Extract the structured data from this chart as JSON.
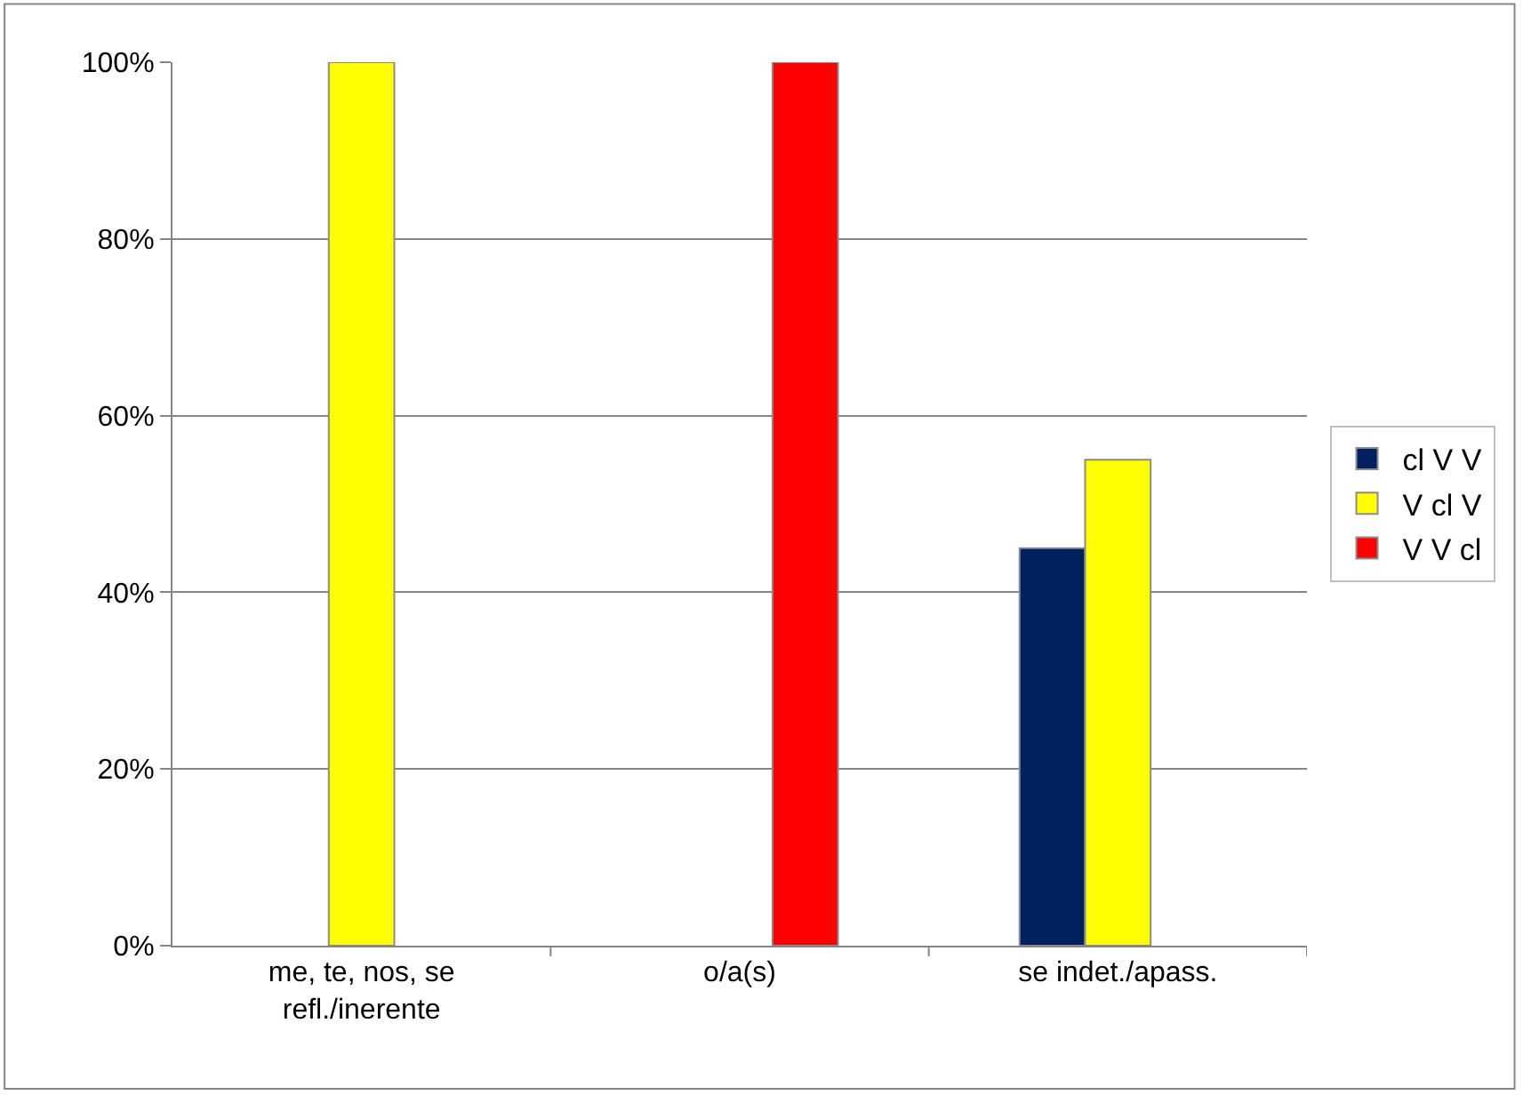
{
  "chart_data": {
    "type": "bar",
    "categories": [
      "me, te, nos, se\nrefl./inerente",
      "o/a(s)",
      "se indet./apass."
    ],
    "series": [
      {
        "name": "cl V V",
        "color": "#002060",
        "values": [
          null,
          null,
          45
        ]
      },
      {
        "name": "V cl V",
        "color": "#ffff00",
        "values": [
          100,
          null,
          55
        ]
      },
      {
        "name": "V V cl",
        "color": "#ff0000",
        "values": [
          null,
          100,
          null
        ]
      }
    ],
    "ylim": [
      0,
      100
    ],
    "yticks": [
      {
        "value": 0,
        "label": "0%"
      },
      {
        "value": 20,
        "label": "20%"
      },
      {
        "value": 40,
        "label": "40%"
      },
      {
        "value": 60,
        "label": "60%"
      },
      {
        "value": 80,
        "label": "80%"
      },
      {
        "value": 100,
        "label": "100%"
      }
    ],
    "grid": "y",
    "legend": "right"
  }
}
